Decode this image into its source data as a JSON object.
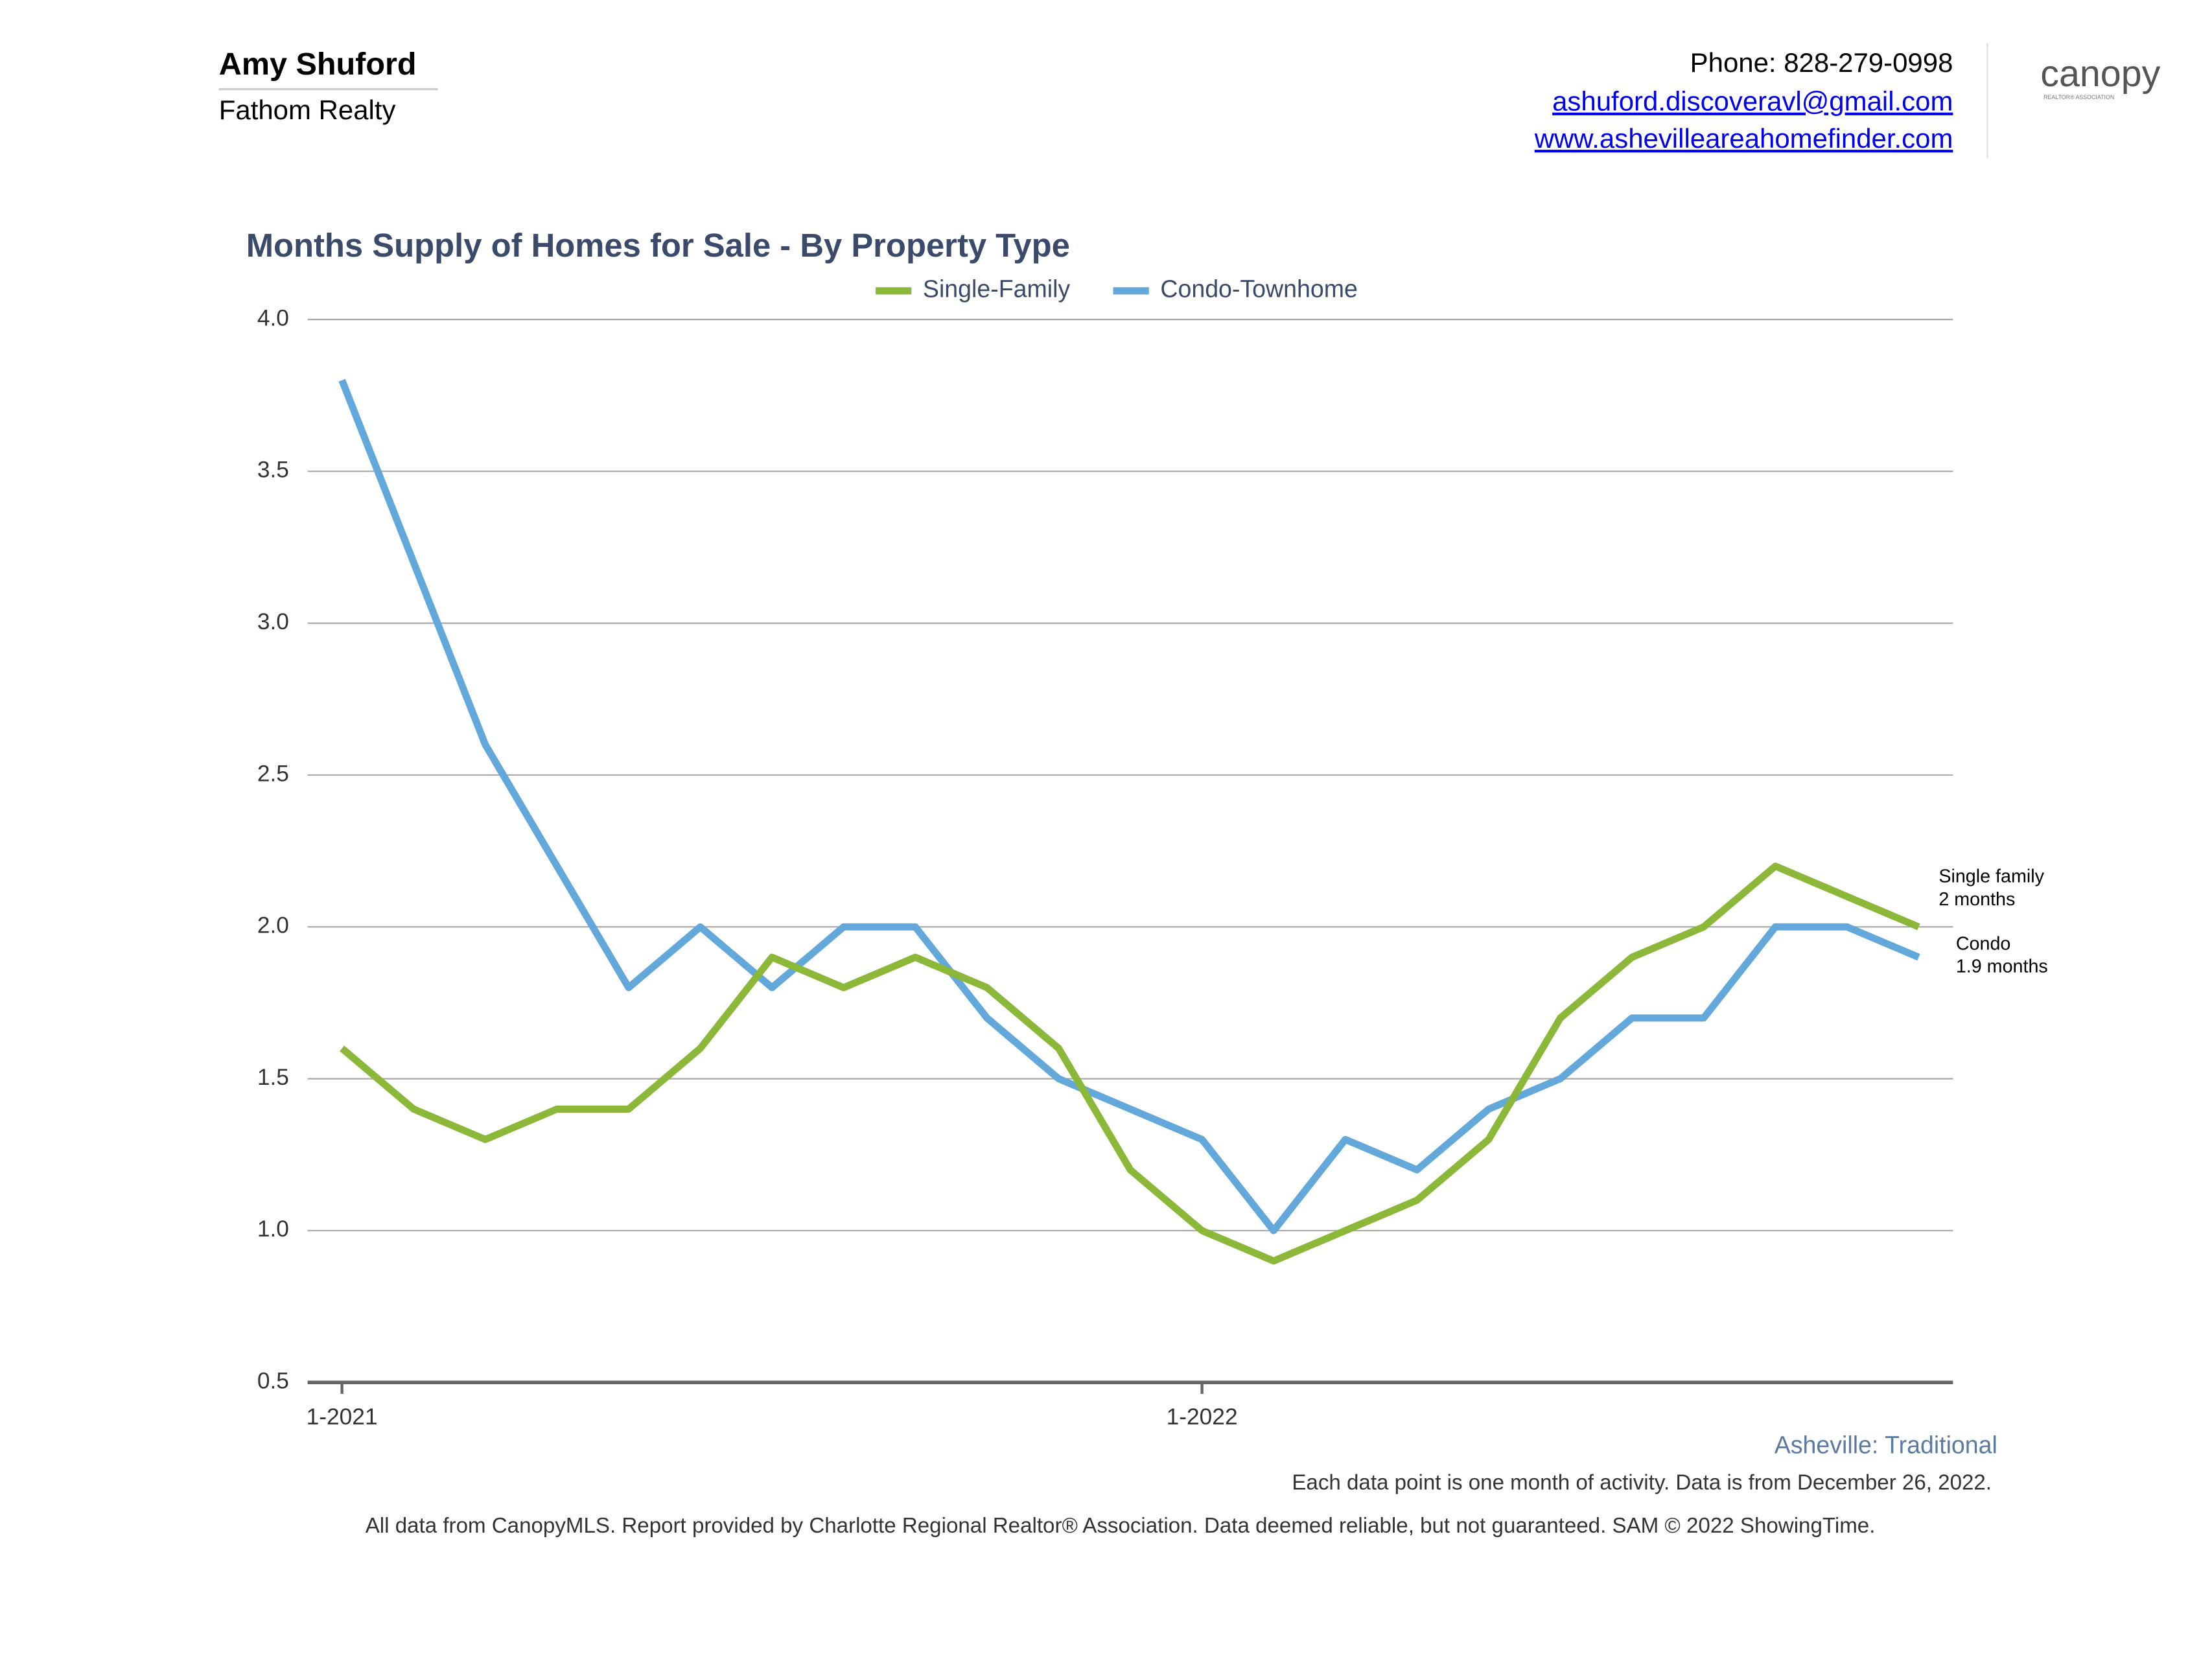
{
  "header": {
    "name": "Amy Shuford",
    "company": "Fathom Realty",
    "phone": "Phone: 828-279-0998",
    "email": "ashuford.discoveravl@gmail.com",
    "website": "www.ashevilleareahomefinder.com",
    "logo": "canopy",
    "logo_sub": "REALTOR® ASSOCIATION"
  },
  "chart_data": {
    "type": "line",
    "title": "Months Supply of Homes for Sale - By Property Type",
    "categories": [
      "1-2021",
      null,
      null,
      null,
      null,
      null,
      null,
      null,
      null,
      null,
      null,
      null,
      "1-2022",
      null,
      null,
      null,
      null,
      null,
      null,
      null,
      null,
      null,
      null
    ],
    "series": [
      {
        "name": "Single-Family",
        "color": "#8cb83a",
        "values": [
          1.6,
          1.4,
          1.3,
          1.4,
          1.4,
          1.6,
          1.9,
          1.8,
          1.9,
          1.8,
          1.6,
          1.2,
          1.0,
          0.9,
          1.0,
          1.1,
          1.3,
          1.7,
          1.9,
          2.0,
          2.2,
          2.1,
          2.0
        ]
      },
      {
        "name": "Condo-Townhome",
        "color": "#62a8da",
        "values": [
          3.8,
          3.2,
          2.6,
          2.2,
          1.8,
          2.0,
          1.8,
          2.0,
          2.0,
          1.7,
          1.5,
          1.4,
          1.3,
          1.0,
          1.3,
          1.2,
          1.4,
          1.5,
          1.7,
          1.7,
          2.0,
          2.0,
          1.9
        ]
      }
    ],
    "ylim": [
      0.5,
      4.0
    ],
    "yticks": [
      0.5,
      {
        "value": 1,
        "label": "1.0"
      },
      1.5,
      {
        "value": 2,
        "label": "2.0"
      },
      2.5,
      {
        "value": 3,
        "label": "3.0"
      },
      3.5,
      {
        "value": 4,
        "label": "4.0"
      }
    ],
    "grid": true,
    "legend": "top",
    "annotations": [
      "Single family",
      "2 months",
      "Condo",
      "1.9 months"
    ]
  },
  "footer": {
    "region": "Asheville: Traditional",
    "note": "Each data point is one month of activity. Data is from December 26, 2022.",
    "disclaimer": "All data from CanopyMLS. Report provided by Charlotte Regional Realtor® Association. Data deemed reliable, but not guaranteed. SAM © 2022 ShowingTime."
  }
}
